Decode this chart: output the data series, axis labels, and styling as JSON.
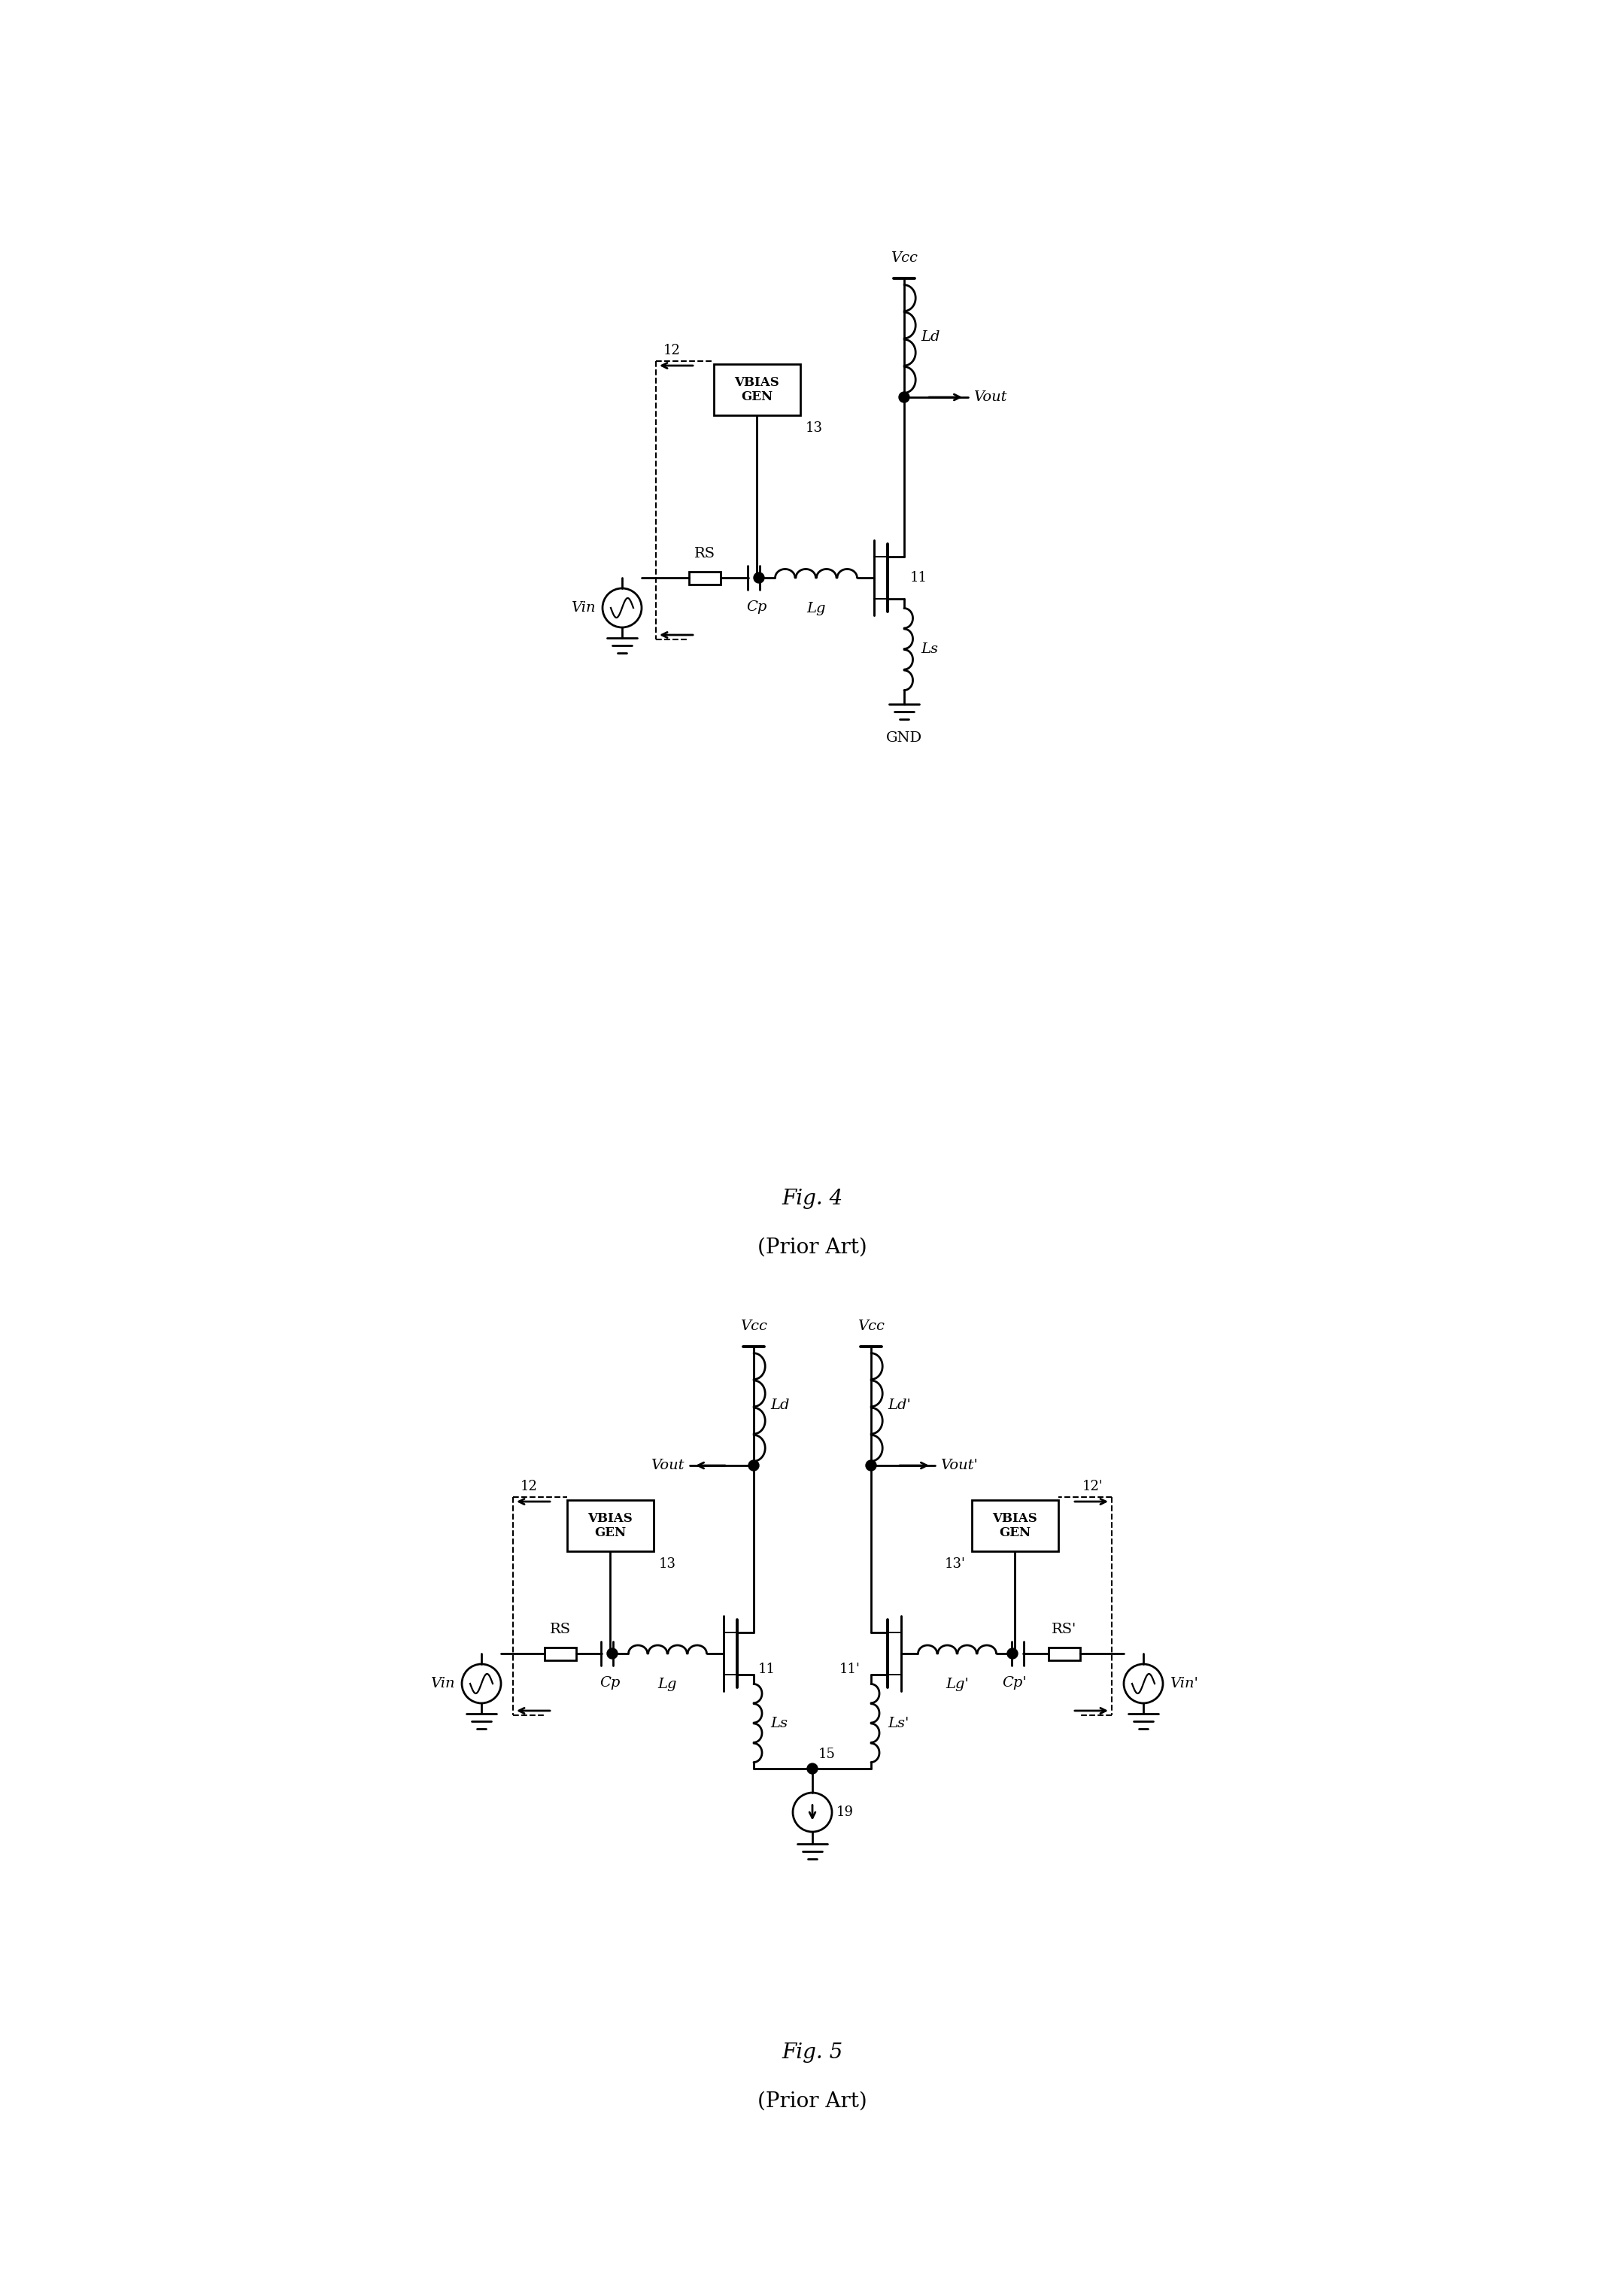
{
  "lw": 2.0,
  "lw_thin": 1.5,
  "lw_thick": 2.8,
  "fs_label": 14,
  "fs_title": 20,
  "fs_num": 13,
  "bg": "#ffffff",
  "lc": "#000000",
  "fig4_title": "Fig. 4",
  "fig4_sub": "(Prior Art)",
  "fig5_title": "Fig. 5",
  "fig5_sub": "(Prior Art)"
}
